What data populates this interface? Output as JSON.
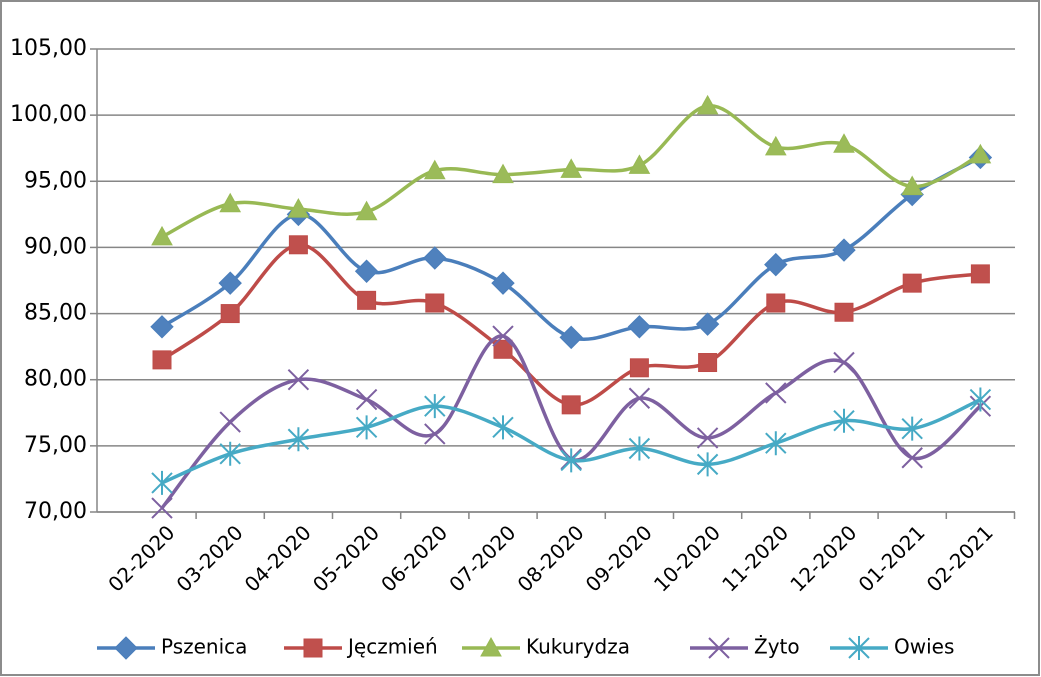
{
  "chart_data": {
    "type": "line",
    "categories": [
      "02-2020",
      "03-2020",
      "04-2020",
      "05-2020",
      "06-2020",
      "07-2020",
      "08-2020",
      "09-2020",
      "10-2020",
      "11-2020",
      "12-2020",
      "01-2021",
      "02-2021"
    ],
    "series": [
      {
        "name": "Pszenica",
        "color": "#4a7ebb",
        "marker": "diamond",
        "values": [
          84.0,
          87.3,
          92.5,
          88.2,
          89.2,
          87.3,
          83.2,
          84.0,
          84.2,
          88.7,
          89.8,
          94.0,
          96.8
        ]
      },
      {
        "name": "Jęczmień",
        "color": "#be4b48",
        "marker": "square",
        "values": [
          81.5,
          85.0,
          90.2,
          86.0,
          85.8,
          82.3,
          78.1,
          80.9,
          81.3,
          85.8,
          85.1,
          87.3,
          88.0
        ]
      },
      {
        "name": "Kukurydza",
        "color": "#98b954",
        "marker": "triangle",
        "values": [
          90.8,
          93.3,
          92.9,
          92.7,
          95.8,
          95.5,
          95.9,
          96.2,
          100.7,
          97.6,
          97.8,
          94.6,
          97.0
        ]
      },
      {
        "name": "Żyto",
        "color": "#7d60a0",
        "marker": "x",
        "values": [
          70.3,
          76.8,
          80.0,
          78.5,
          75.9,
          83.3,
          74.0,
          78.6,
          75.6,
          79.0,
          81.3,
          74.1,
          78.0
        ]
      },
      {
        "name": "Owies",
        "color": "#46aac5",
        "marker": "star",
        "values": [
          72.2,
          74.4,
          75.5,
          76.4,
          78.0,
          76.4,
          73.9,
          74.8,
          73.6,
          75.2,
          76.9,
          76.3,
          78.5
        ]
      }
    ],
    "ylim": [
      70,
      105
    ],
    "yticks": [
      {
        "value": 70,
        "label": "70,00"
      },
      {
        "value": 75,
        "label": "75,00"
      },
      {
        "value": 80,
        "label": "80,00"
      },
      {
        "value": 85,
        "label": "85,00"
      },
      {
        "value": 90,
        "label": "90,00"
      },
      {
        "value": 95,
        "label": "95,00"
      },
      {
        "value": 100,
        "label": "100,00"
      },
      {
        "value": 105,
        "label": "105,00"
      }
    ],
    "grid": true,
    "smooth": true,
    "legend": "bottom"
  }
}
